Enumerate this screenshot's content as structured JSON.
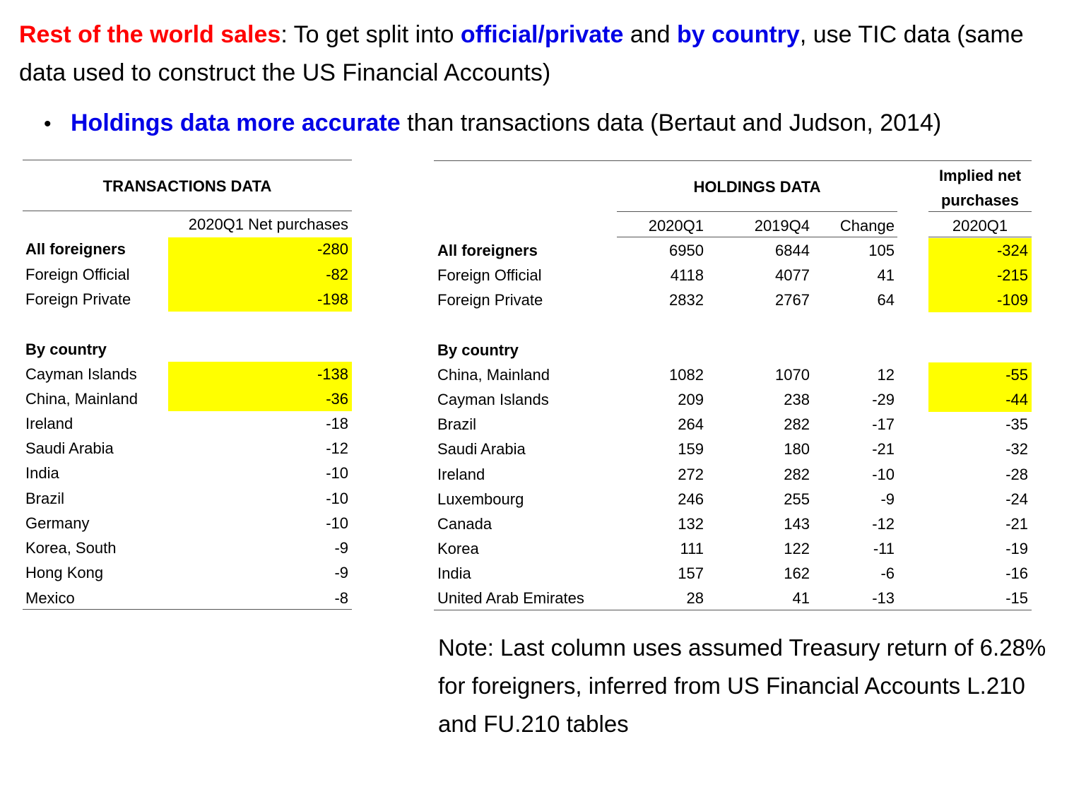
{
  "heading": {
    "part1": "Rest of the world sales",
    "part2": ": To get split into ",
    "part3": "official/private",
    "part4": " and ",
    "part5": "by country",
    "part6": ", use TIC data (same data used to construct the US Financial Accounts)"
  },
  "bullet": {
    "symbol": "•",
    "highlight": "Holdings data more accurate",
    "rest": " than transactions data (Bertaut and Judson, 2014)"
  },
  "colors": {
    "highlight": "#ffff00",
    "red": "#ff0000",
    "blue": "#0000e6"
  },
  "transactions": {
    "title": "TRANSACTIONS DATA",
    "column_header": "2020Q1 Net purchases",
    "summary": [
      {
        "label": "All foreigners",
        "value": "-280",
        "bold": true,
        "highlight": true
      },
      {
        "label": "Foreign Official",
        "value": "-82",
        "highlight": true
      },
      {
        "label": "Foreign Private",
        "value": "-198",
        "highlight": true
      }
    ],
    "by_country_label": "By country",
    "countries": [
      {
        "label": "Cayman Islands",
        "value": "-138",
        "highlight": true
      },
      {
        "label": "China, Mainland",
        "value": "-36",
        "highlight": true
      },
      {
        "label": "Ireland",
        "value": "-18"
      },
      {
        "label": "Saudi Arabia",
        "value": "-12"
      },
      {
        "label": "India",
        "value": "-10"
      },
      {
        "label": "Brazil",
        "value": "-10"
      },
      {
        "label": "Germany",
        "value": "-10"
      },
      {
        "label": "Korea, South",
        "value": "-9"
      },
      {
        "label": "Hong Kong",
        "value": "-9"
      },
      {
        "label": "Mexico",
        "value": "-8"
      }
    ]
  },
  "holdings": {
    "title": "HOLDINGS DATA",
    "implied_title_line1": "Implied net",
    "implied_title_line2": "purchases",
    "columns": [
      "2020Q1",
      "2019Q4",
      "Change"
    ],
    "implied_column": "2020Q1",
    "summary": [
      {
        "label": "All foreigners",
        "q1": "6950",
        "q4": "6844",
        "change": "105",
        "implied": "-324",
        "bold": true,
        "highlight": true
      },
      {
        "label": "Foreign Official",
        "q1": "4118",
        "q4": "4077",
        "change": "41",
        "implied": "-215",
        "highlight": true
      },
      {
        "label": "Foreign Private",
        "q1": "2832",
        "q4": "2767",
        "change": "64",
        "implied": "-109",
        "highlight": true
      }
    ],
    "by_country_label": "By country",
    "countries": [
      {
        "label": "China, Mainland",
        "q1": "1082",
        "q4": "1070",
        "change": "12",
        "implied": "-55",
        "highlight": true
      },
      {
        "label": "Cayman Islands",
        "q1": "209",
        "q4": "238",
        "change": "-29",
        "implied": "-44",
        "highlight": true
      },
      {
        "label": "Brazil",
        "q1": "264",
        "q4": "282",
        "change": "-17",
        "implied": "-35"
      },
      {
        "label": "Saudi Arabia",
        "q1": "159",
        "q4": "180",
        "change": "-21",
        "implied": "-32"
      },
      {
        "label": "Ireland",
        "q1": "272",
        "q4": "282",
        "change": "-10",
        "implied": "-28"
      },
      {
        "label": "Luxembourg",
        "q1": "246",
        "q4": "255",
        "change": "-9",
        "implied": "-24"
      },
      {
        "label": "Canada",
        "q1": "132",
        "q4": "143",
        "change": "-12",
        "implied": "-21"
      },
      {
        "label": "Korea",
        "q1": "111",
        "q4": "122",
        "change": "-11",
        "implied": "-19"
      },
      {
        "label": "India",
        "q1": "157",
        "q4": "162",
        "change": "-6",
        "implied": "-16"
      },
      {
        "label": "United Arab Emirates",
        "q1": "28",
        "q4": "41",
        "change": "-13",
        "implied": "-15"
      }
    ]
  },
  "note": "Note: Last column uses assumed Treasury return of 6.28% for foreigners, inferred from US Financial Accounts L.210 and FU.210 tables"
}
